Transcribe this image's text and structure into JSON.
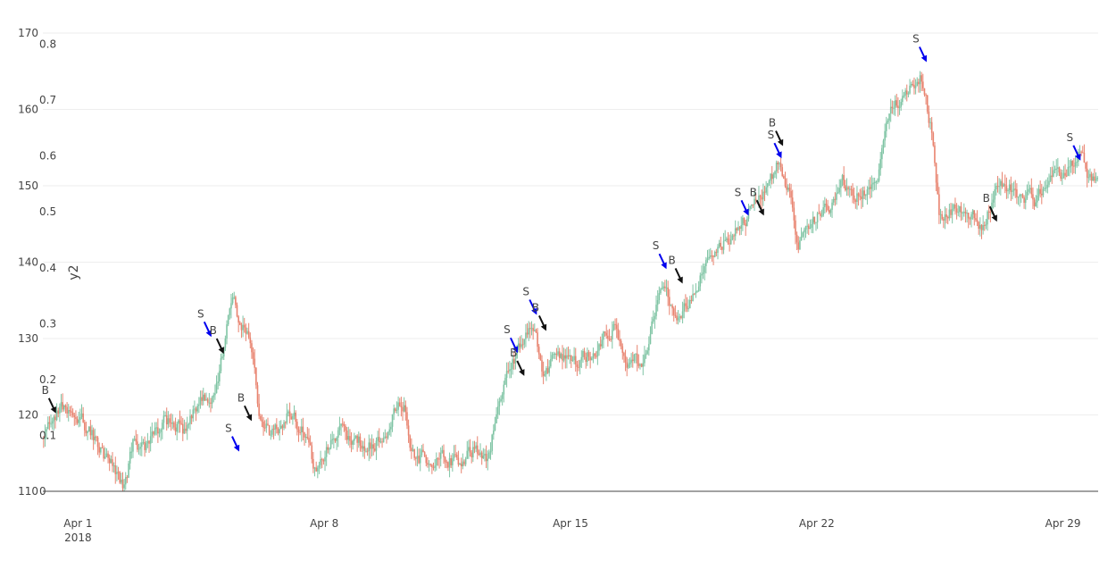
{
  "chart_data": {
    "type": "candlestick",
    "y_axis": {
      "range": [
        110,
        170
      ],
      "ticks": [
        110,
        120,
        130,
        140,
        150,
        160,
        170
      ],
      "tick_labels": [
        "110",
        "120",
        "130",
        "140",
        "150",
        "160",
        "170"
      ]
    },
    "y2_axis": {
      "title": "y2",
      "range": [
        0,
        0.82
      ],
      "ticks": [
        0,
        0.1,
        0.2,
        0.3,
        0.4,
        0.5,
        0.6,
        0.7,
        0.8
      ],
      "tick_labels": [
        "0",
        "0.1",
        "0.2",
        "0.3",
        "0.4",
        "0.5",
        "0.6",
        "0.7",
        "0.8"
      ]
    },
    "x_axis": {
      "range": [
        "2018-03-31",
        "2018-04-30"
      ],
      "ticks": [
        "2018-04-01",
        "2018-04-08",
        "2018-04-15",
        "2018-04-22",
        "2018-04-29"
      ],
      "tick_labels": [
        "Apr 1",
        "Apr 8",
        "Apr 15",
        "Apr 22",
        "Apr 29"
      ],
      "year_label": "2018"
    },
    "grid": true,
    "colors": {
      "increasing": "#7fc4a4",
      "decreasing": "#e8836f",
      "sell_arrow": "#0000ee",
      "buy_arrow": "#111111",
      "grid": "#eeeeee",
      "axis_line": "#444444"
    },
    "path_points": [
      [
        "2018-03-31T00:00",
        117
      ],
      [
        "2018-03-31T12:00",
        121
      ],
      [
        "2018-04-01T00:00",
        120
      ],
      [
        "2018-04-01T12:00",
        117
      ],
      [
        "2018-04-02T00:00",
        113
      ],
      [
        "2018-04-02T08:00",
        110.5
      ],
      [
        "2018-04-02T14:00",
        116
      ],
      [
        "2018-04-03T00:00",
        116
      ],
      [
        "2018-04-03T12:00",
        119
      ],
      [
        "2018-04-04T00:00",
        118
      ],
      [
        "2018-04-04T12:00",
        122
      ],
      [
        "2018-04-05T00:00",
        124
      ],
      [
        "2018-04-05T06:00",
        131
      ],
      [
        "2018-04-05T10:00",
        135
      ],
      [
        "2018-04-05T18:00",
        131
      ],
      [
        "2018-04-06T00:00",
        128
      ],
      [
        "2018-04-06T04:00",
        120
      ],
      [
        "2018-04-06T12:00",
        117
      ],
      [
        "2018-04-07T00:00",
        120
      ],
      [
        "2018-04-07T12:00",
        118
      ],
      [
        "2018-04-07T18:00",
        113
      ],
      [
        "2018-04-08T00:00",
        114
      ],
      [
        "2018-04-08T06:00",
        118
      ],
      [
        "2018-04-08T18:00",
        117
      ],
      [
        "2018-04-09T06:00",
        116
      ],
      [
        "2018-04-09T18:00",
        117
      ],
      [
        "2018-04-10T02:00",
        122
      ],
      [
        "2018-04-10T08:00",
        121
      ],
      [
        "2018-04-10T12:00",
        115
      ],
      [
        "2018-04-11T00:00",
        114
      ],
      [
        "2018-04-11T12:00",
        114
      ],
      [
        "2018-04-12T00:00",
        114
      ],
      [
        "2018-04-12T08:00",
        116
      ],
      [
        "2018-04-12T16:00",
        114
      ],
      [
        "2018-04-13T00:00",
        122
      ],
      [
        "2018-04-13T12:00",
        128
      ],
      [
        "2018-04-14T00:00",
        131
      ],
      [
        "2018-04-14T06:00",
        126
      ],
      [
        "2018-04-14T18:00",
        127
      ],
      [
        "2018-04-15T06:00",
        127
      ],
      [
        "2018-04-15T18:00",
        129
      ],
      [
        "2018-04-16T00:00",
        131
      ],
      [
        "2018-04-16T06:00",
        132
      ],
      [
        "2018-04-16T12:00",
        127
      ],
      [
        "2018-04-17T00:00",
        127
      ],
      [
        "2018-04-17T06:00",
        129
      ],
      [
        "2018-04-17T12:00",
        135
      ],
      [
        "2018-04-17T18:00",
        137
      ],
      [
        "2018-04-18T00:00",
        133
      ],
      [
        "2018-04-18T12:00",
        136
      ],
      [
        "2018-04-19T00:00",
        140
      ],
      [
        "2018-04-19T12:00",
        143
      ],
      [
        "2018-04-20T00:00",
        146
      ],
      [
        "2018-04-20T12:00",
        149
      ],
      [
        "2018-04-21T00:00",
        153
      ],
      [
        "2018-04-21T06:00",
        149
      ],
      [
        "2018-04-21T12:00",
        141
      ],
      [
        "2018-04-21T18:00",
        145
      ],
      [
        "2018-04-22T06:00",
        147
      ],
      [
        "2018-04-22T18:00",
        150
      ],
      [
        "2018-04-23T06:00",
        149
      ],
      [
        "2018-04-23T18:00",
        150
      ],
      [
        "2018-04-24T00:00",
        158
      ],
      [
        "2018-04-24T12:00",
        162
      ],
      [
        "2018-04-25T00:00",
        164
      ],
      [
        "2018-04-25T06:00",
        158
      ],
      [
        "2018-04-25T12:00",
        146
      ],
      [
        "2018-04-25T18:00",
        147
      ],
      [
        "2018-04-26T06:00",
        146
      ],
      [
        "2018-04-26T18:00",
        145
      ],
      [
        "2018-04-27T06:00",
        151
      ],
      [
        "2018-04-27T18:00",
        149
      ],
      [
        "2018-04-28T06:00",
        148
      ],
      [
        "2018-04-28T18:00",
        151
      ],
      [
        "2018-04-29T06:00",
        152
      ],
      [
        "2018-04-29T12:00",
        154
      ],
      [
        "2018-04-29T18:00",
        151
      ],
      [
        "2018-04-30T00:00",
        152
      ]
    ],
    "annotations": [
      {
        "label": "B",
        "type": "buy",
        "x": "2018-03-31T09:00",
        "y": 120.2
      },
      {
        "label": "S",
        "type": "sell",
        "x": "2018-04-04T19:00",
        "y": 130.2
      },
      {
        "label": "B",
        "type": "buy",
        "x": "2018-04-05T03:30",
        "y": 128.0
      },
      {
        "label": "S",
        "type": "sell",
        "x": "2018-04-05T14:00",
        "y": 115.2
      },
      {
        "label": "B",
        "type": "buy",
        "x": "2018-04-05T22:30",
        "y": 119.2
      },
      {
        "label": "S",
        "type": "sell",
        "x": "2018-04-13T12:00",
        "y": 128.1
      },
      {
        "label": "B",
        "type": "buy",
        "x": "2018-04-13T16:30",
        "y": 125.1
      },
      {
        "label": "S",
        "type": "sell",
        "x": "2018-04-14T01:00",
        "y": 133.1
      },
      {
        "label": "B",
        "type": "buy",
        "x": "2018-04-14T07:30",
        "y": 131.0
      },
      {
        "label": "S",
        "type": "sell",
        "x": "2018-04-17T17:30",
        "y": 139.1
      },
      {
        "label": "B",
        "type": "buy",
        "x": "2018-04-18T04:30",
        "y": 137.2
      },
      {
        "label": "S",
        "type": "sell",
        "x": "2018-04-20T01:30",
        "y": 146.1
      },
      {
        "label": "B",
        "type": "buy",
        "x": "2018-04-20T12:00",
        "y": 146.1
      },
      {
        "label": "S",
        "type": "sell",
        "x": "2018-04-21T00:00",
        "y": 153.6
      },
      {
        "label": "B",
        "type": "buy",
        "x": "2018-04-21T01:00",
        "y": 155.2
      },
      {
        "label": "S",
        "type": "sell",
        "x": "2018-04-25T03:00",
        "y": 166.2
      },
      {
        "label": "B",
        "type": "buy",
        "x": "2018-04-27T03:00",
        "y": 145.3
      },
      {
        "label": "S",
        "type": "sell",
        "x": "2018-04-29T12:00",
        "y": 153.3
      }
    ]
  }
}
